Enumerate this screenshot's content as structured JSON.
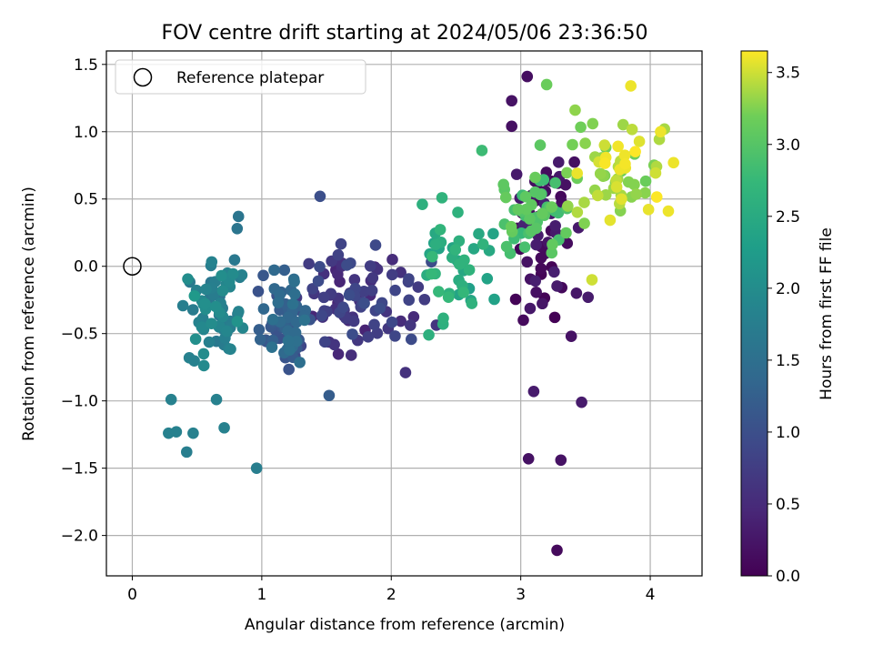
{
  "chart_data": {
    "type": "scatter",
    "title": "FOV centre drift starting at 2024/05/06 23:36:50",
    "xlabel": "Angular distance from reference (arcmin)",
    "ylabel": "Rotation from reference (arcmin)",
    "xlim": [
      -0.2,
      4.4
    ],
    "ylim": [
      -2.3,
      1.6
    ],
    "xticks": [
      0,
      1,
      2,
      3,
      4
    ],
    "yticks": [
      -2.0,
      -1.5,
      -1.0,
      -0.5,
      0.0,
      0.5,
      1.0,
      1.5
    ],
    "grid": true,
    "legend": {
      "position": "top-left",
      "entries": [
        "Reference platepar"
      ]
    },
    "reference_point": {
      "x": 0.0,
      "y": 0.0,
      "label": "Reference platepar"
    },
    "colorbar": {
      "label": "Hours from first FF file",
      "colormap": "viridis",
      "range": [
        0.0,
        3.65
      ],
      "ticks": [
        0.0,
        0.5,
        1.0,
        1.5,
        2.0,
        2.5,
        3.0,
        3.5
      ]
    },
    "clusters": [
      {
        "name": "",
        "hours": [
          0.0,
          0.4
        ],
        "n": 55,
        "seed": 11,
        "x": [
          2.85,
          3.45
        ],
        "y": [
          -0.45,
          1.0
        ]
      },
      {
        "name": "",
        "hours": [
          0.4,
          1.0
        ],
        "n": 90,
        "seed": 23,
        "x": [
          1.2,
          2.4
        ],
        "y": [
          -0.8,
          0.25
        ]
      },
      {
        "name": "",
        "hours": [
          1.0,
          1.55
        ],
        "n": 70,
        "seed": 37,
        "x": [
          0.95,
          1.4
        ],
        "y": [
          -0.85,
          0.05
        ]
      },
      {
        "name": "",
        "hours": [
          1.55,
          2.1
        ],
        "n": 65,
        "seed": 41,
        "x": [
          0.35,
          0.9
        ],
        "y": [
          -0.8,
          0.15
        ]
      },
      {
        "name": "",
        "hours": [
          2.3,
          2.75
        ],
        "n": 40,
        "seed": 53,
        "x": [
          2.2,
          2.85
        ],
        "y": [
          -0.5,
          0.55
        ]
      },
      {
        "name": "",
        "hours": [
          2.75,
          3.15
        ],
        "n": 45,
        "seed": 67,
        "x": [
          2.85,
          3.4
        ],
        "y": [
          0.05,
          0.75
        ]
      },
      {
        "name": "",
        "hours": [
          3.15,
          3.65
        ],
        "n": 60,
        "seed": 79,
        "x": [
          3.3,
          4.15
        ],
        "y": [
          0.25,
          1.2
        ]
      }
    ],
    "points": [
      {
        "x": 3.05,
        "y": 1.41,
        "hours": 0.15
      },
      {
        "x": 2.93,
        "y": 1.23,
        "hours": 0.2
      },
      {
        "x": 2.93,
        "y": 1.04,
        "hours": 0.18
      },
      {
        "x": 3.2,
        "y": 1.35,
        "hours": 3.15
      },
      {
        "x": 3.28,
        "y": -2.11,
        "hours": 0.1
      },
      {
        "x": 3.06,
        "y": -1.43,
        "hours": 0.2
      },
      {
        "x": 3.31,
        "y": -1.44,
        "hours": 0.2
      },
      {
        "x": 3.1,
        "y": -0.93,
        "hours": 0.3
      },
      {
        "x": 3.47,
        "y": -1.01,
        "hours": 0.3
      },
      {
        "x": 3.39,
        "y": -0.52,
        "hours": 0.2
      },
      {
        "x": 3.02,
        "y": -0.4,
        "hours": 0.1
      },
      {
        "x": 3.43,
        "y": -0.2,
        "hours": 0.25
      },
      {
        "x": 3.52,
        "y": -0.23,
        "hours": 0.3
      },
      {
        "x": 1.45,
        "y": 0.52,
        "hours": 1.0
      },
      {
        "x": 1.52,
        "y": -0.96,
        "hours": 1.2
      },
      {
        "x": 2.11,
        "y": -0.79,
        "hours": 0.6
      },
      {
        "x": 0.82,
        "y": 0.37,
        "hours": 1.6
      },
      {
        "x": 0.81,
        "y": 0.28,
        "hours": 1.6
      },
      {
        "x": 0.96,
        "y": -1.5,
        "hours": 1.75
      },
      {
        "x": 0.3,
        "y": -0.99,
        "hours": 1.8
      },
      {
        "x": 0.28,
        "y": -1.24,
        "hours": 1.8
      },
      {
        "x": 0.34,
        "y": -1.23,
        "hours": 1.8
      },
      {
        "x": 0.42,
        "y": -1.38,
        "hours": 1.75
      },
      {
        "x": 0.47,
        "y": -1.24,
        "hours": 1.8
      },
      {
        "x": 0.71,
        "y": -1.2,
        "hours": 1.8
      },
      {
        "x": 0.65,
        "y": -0.99,
        "hours": 1.8
      },
      {
        "x": 0.44,
        "y": -0.68,
        "hours": 1.8
      },
      {
        "x": 0.48,
        "y": -0.22,
        "hours": 2.2
      },
      {
        "x": 2.29,
        "y": -0.51,
        "hours": 2.6
      },
      {
        "x": 2.4,
        "y": -0.43,
        "hours": 2.6
      },
      {
        "x": 2.24,
        "y": 0.46,
        "hours": 2.6
      },
      {
        "x": 2.7,
        "y": 0.86,
        "hours": 2.8
      },
      {
        "x": 3.15,
        "y": 0.9,
        "hours": 3.05
      },
      {
        "x": 3.55,
        "y": -0.1,
        "hours": 3.5
      },
      {
        "x": 4.18,
        "y": 0.77,
        "hours": 3.6
      },
      {
        "x": 4.14,
        "y": 0.41,
        "hours": 3.6
      },
      {
        "x": 4.08,
        "y": 1.0,
        "hours": 3.6
      },
      {
        "x": 3.85,
        "y": 1.34,
        "hours": 3.6
      },
      {
        "x": 3.42,
        "y": 1.16,
        "hours": 3.3
      }
    ]
  }
}
